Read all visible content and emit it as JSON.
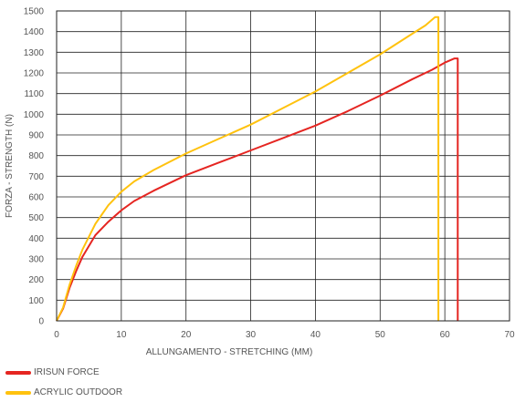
{
  "chart_data": {
    "type": "line",
    "xlabel": "ALLUNGAMENTO - STRETCHING (MM)",
    "ylabel": "FORZA - STRENGTH  (N)",
    "xlim": [
      0,
      70
    ],
    "ylim": [
      0,
      1500
    ],
    "xticks": [
      "0",
      "10",
      "20",
      "30",
      "40",
      "50",
      "60",
      "70"
    ],
    "yticks": [
      "0",
      "100",
      "200",
      "300",
      "400",
      "500",
      "600",
      "700",
      "800",
      "900",
      "1000",
      "1100",
      "1200",
      "1300",
      "1400",
      "1500"
    ],
    "grid": true,
    "legend_position": "bottom-left",
    "series": [
      {
        "name": "IRISUN FORCE",
        "color": "#e52521",
        "x": [
          0,
          1,
          2,
          3,
          4,
          6,
          8,
          10,
          12,
          15,
          20,
          25,
          30,
          35,
          40,
          45,
          50,
          55,
          58,
          60,
          61.5,
          62,
          62
        ],
        "y": [
          0,
          60,
          160,
          240,
          310,
          415,
          480,
          535,
          580,
          630,
          705,
          765,
          825,
          885,
          945,
          1015,
          1090,
          1170,
          1215,
          1250,
          1270,
          1270,
          0
        ]
      },
      {
        "name": "ACRYLIC OUTDOOR",
        "color": "#ffc20e",
        "x": [
          0,
          1,
          2,
          3,
          4,
          6,
          8,
          10,
          12,
          15,
          20,
          25,
          30,
          35,
          40,
          45,
          50,
          55,
          57,
          58.5,
          59,
          59
        ],
        "y": [
          0,
          65,
          175,
          265,
          345,
          470,
          560,
          625,
          675,
          730,
          810,
          880,
          950,
          1030,
          1110,
          1200,
          1290,
          1390,
          1430,
          1470,
          1470,
          0
        ]
      }
    ]
  }
}
